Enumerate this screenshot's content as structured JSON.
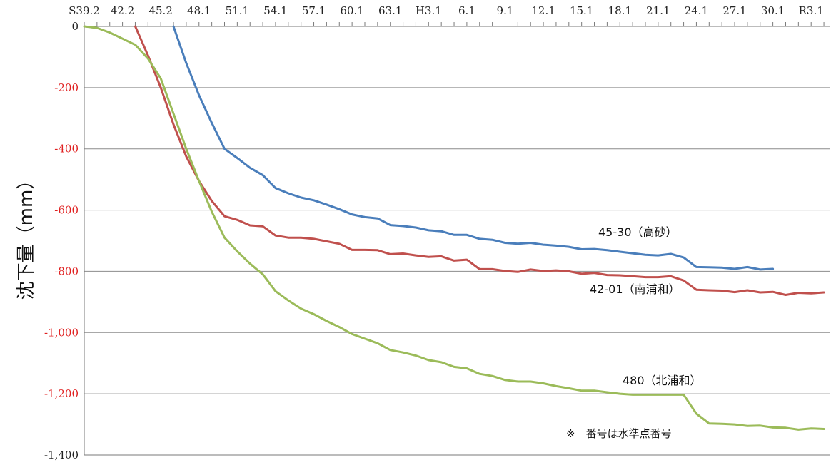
{
  "chart_data": {
    "type": "line",
    "ylabel": "沈下量（mm）",
    "ylim": [
      -1400,
      0
    ],
    "yticks": [
      0,
      -200,
      -400,
      -600,
      -800,
      -1000,
      -1200,
      -1400
    ],
    "ytick_labels": [
      "0",
      "-200",
      "-400",
      "-600",
      "-800",
      "-1,000",
      "-1,200",
      "-1,400"
    ],
    "ytick_colors": [
      "#222222",
      "#e02020",
      "#e02020",
      "#e02020",
      "#e02020",
      "#e02020",
      "#e02020",
      "#222222"
    ],
    "xlim": [
      1964,
      2022.5
    ],
    "xtick_labels": [
      "S39.2",
      "42.2",
      "45.2",
      "48.1",
      "51.1",
      "54.1",
      "57.1",
      "60.1",
      "63.1",
      "H3.1",
      "6.1",
      "9.1",
      "12.1",
      "15.1",
      "18.1",
      "21.1",
      "24.1",
      "27.1",
      "30.1",
      "R3.1"
    ],
    "xtick_positions": [
      1964,
      1967,
      1970,
      1973,
      1976,
      1979,
      1982,
      1985,
      1988,
      1991,
      1994,
      1997,
      2000,
      2003,
      2006,
      2009,
      2012,
      2015,
      2018,
      2021
    ],
    "grid": true,
    "note": "※　番号は水準点番号",
    "series": [
      {
        "name": "45-30（高砂）",
        "color": "#4a7ebb",
        "x": [
          1971,
          1972,
          1973,
          1974,
          1975,
          1976,
          1977,
          1978,
          1979,
          1980,
          1981,
          1982,
          1983,
          1984,
          1985,
          1986,
          1987,
          1988,
          1989,
          1990,
          1991,
          1992,
          1993,
          1994,
          1995,
          1996,
          1997,
          1998,
          1999,
          2000,
          2001,
          2002,
          2003,
          2004,
          2005,
          2006,
          2007,
          2008,
          2009,
          2010,
          2011,
          2012,
          2013,
          2014,
          2015,
          2016,
          2017,
          2018
        ],
        "values": [
          0,
          -120,
          -225,
          -315,
          -400,
          -430,
          -462,
          -486,
          -528,
          -545,
          -559,
          -568,
          -582,
          -597,
          -614,
          -623,
          -627,
          -649,
          -652,
          -657,
          -666,
          -669,
          -681,
          -681,
          -694,
          -697,
          -707,
          -710,
          -707,
          -713,
          -716,
          -720,
          -728,
          -727,
          -731,
          -736,
          -741,
          -746,
          -748,
          -743,
          -755,
          -786,
          -787,
          -788,
          -792,
          -786,
          -794,
          -792
        ]
      },
      {
        "name": "42-01（南浦和）",
        "color": "#c0504d",
        "x": [
          1968,
          1969,
          1970,
          1971,
          1972,
          1973,
          1974,
          1975,
          1976,
          1977,
          1978,
          1979,
          1980,
          1981,
          1982,
          1983,
          1984,
          1985,
          1986,
          1987,
          1988,
          1989,
          1990,
          1991,
          1992,
          1993,
          1994,
          1995,
          1996,
          1997,
          1998,
          1999,
          2000,
          2001,
          2002,
          2003,
          2004,
          2005,
          2006,
          2007,
          2008,
          2009,
          2010,
          2011,
          2012,
          2013,
          2014,
          2015,
          2016,
          2017,
          2018,
          2019,
          2020,
          2021,
          2022
        ],
        "values": [
          0,
          -95,
          -200,
          -320,
          -425,
          -505,
          -570,
          -620,
          -632,
          -650,
          -653,
          -683,
          -690,
          -690,
          -694,
          -702,
          -710,
          -730,
          -730,
          -731,
          -744,
          -742,
          -748,
          -753,
          -751,
          -765,
          -762,
          -793,
          -793,
          -799,
          -802,
          -794,
          -799,
          -797,
          -800,
          -808,
          -805,
          -812,
          -813,
          -816,
          -819,
          -819,
          -816,
          -830,
          -860,
          -862,
          -863,
          -868,
          -862,
          -869,
          -867,
          -877,
          -870,
          -872,
          -869
        ]
      },
      {
        "name": "480（北浦和）",
        "color": "#9bbb59",
        "x": [
          1964,
          1965,
          1966,
          1967,
          1968,
          1969,
          1970,
          1971,
          1972,
          1973,
          1974,
          1975,
          1976,
          1977,
          1978,
          1979,
          1980,
          1981,
          1982,
          1983,
          1984,
          1985,
          1986,
          1987,
          1988,
          1989,
          1990,
          1991,
          1992,
          1993,
          1994,
          1995,
          1996,
          1997,
          1998,
          1999,
          2000,
          2001,
          2002,
          2003,
          2004,
          2005,
          2006,
          2007,
          2008,
          2009,
          2010,
          2011,
          2012,
          2013,
          2014,
          2015,
          2016,
          2017,
          2018,
          2019,
          2020,
          2021,
          2022
        ],
        "values": [
          0,
          -5,
          -20,
          -40,
          -60,
          -105,
          -170,
          -285,
          -400,
          -505,
          -605,
          -690,
          -735,
          -775,
          -810,
          -865,
          -895,
          -922,
          -940,
          -962,
          -982,
          -1005,
          -1020,
          -1035,
          -1057,
          -1065,
          -1075,
          -1090,
          -1097,
          -1112,
          -1117,
          -1135,
          -1142,
          -1155,
          -1160,
          -1160,
          -1166,
          -1175,
          -1182,
          -1190,
          -1190,
          -1195,
          -1200,
          -1203,
          -1203,
          -1203,
          -1203,
          -1203,
          -1265,
          -1297,
          -1298,
          -1300,
          -1305,
          -1304,
          -1310,
          -1311,
          -1317,
          -1313,
          -1315
        ]
      }
    ]
  },
  "annotations": {
    "label_4530": "45-30（高砂）",
    "label_4201": "42-01（南浦和）",
    "label_480": "480（北浦和）"
  }
}
